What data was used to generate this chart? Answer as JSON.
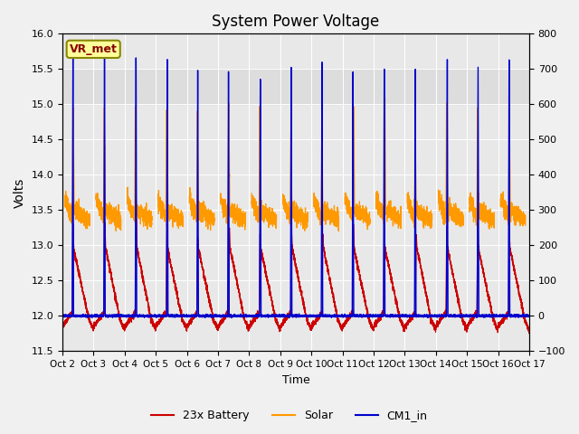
{
  "title": "System Power Voltage",
  "xlabel": "Time",
  "ylabel_left": "Volts",
  "ylim_left": [
    11.5,
    16.0
  ],
  "ylim_right": [
    -100,
    800
  ],
  "x_tick_labels": [
    "Oct 2",
    "Oct 3",
    "Oct 4",
    "Oct 5",
    "Oct 6",
    "Oct 7",
    "Oct 8",
    "Oct 9",
    "Oct 10",
    "Oct 11",
    "Oct 12",
    "Oct 13",
    "Oct 14",
    "Oct 15",
    "Oct 16",
    "Oct 17"
  ],
  "legend_labels": [
    "23x Battery",
    "Solar",
    "CM1_in"
  ],
  "line_colors": [
    "#cc0000",
    "#ff9900",
    "#0000cc"
  ],
  "vr_met_label": "VR_met",
  "vr_met_bg": "#ffff99",
  "vr_met_border": "#888800",
  "vr_met_text_color": "#880000",
  "n_days": 15,
  "right_yticks": [
    -100,
    0,
    100,
    200,
    300,
    400,
    500,
    600,
    700,
    800
  ],
  "left_yticks": [
    11.5,
    12.0,
    12.5,
    13.0,
    13.5,
    14.0,
    14.5,
    15.0,
    15.5,
    16.0
  ],
  "shaded_band": [
    15.5,
    15.0
  ],
  "fig_bg": "#f0f0f0",
  "plot_bg": "#e8e8e8"
}
